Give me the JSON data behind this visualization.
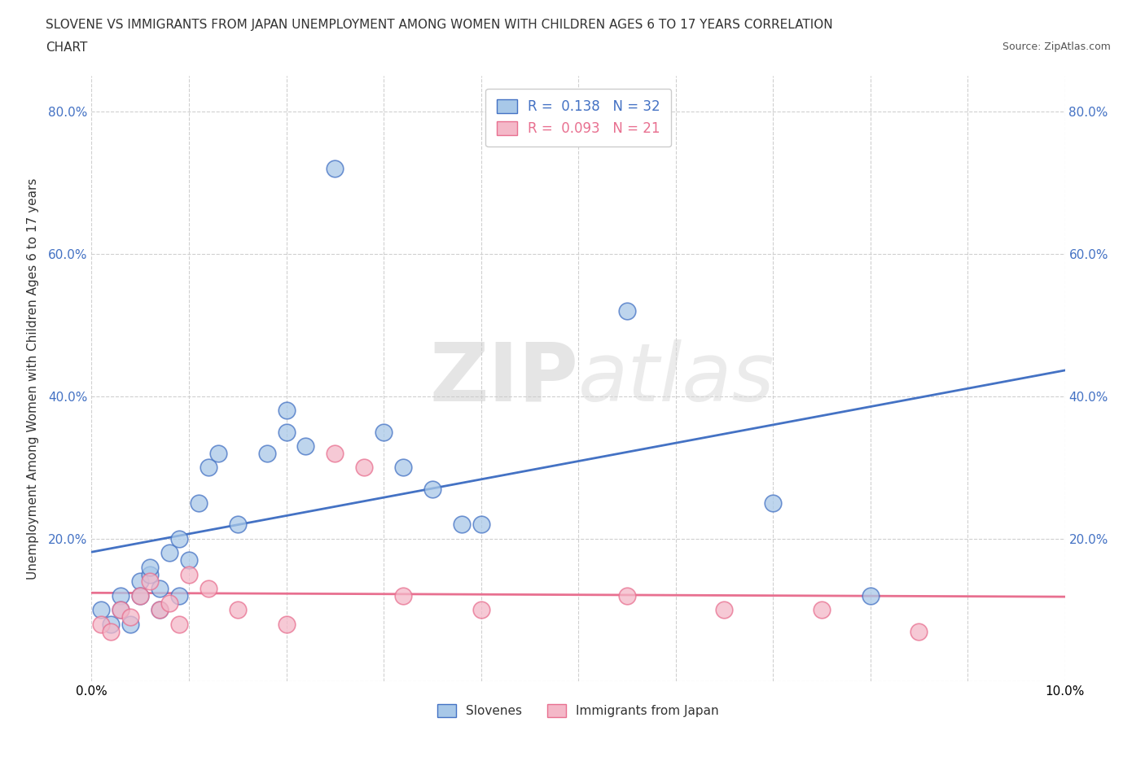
{
  "title_line1": "SLOVENE VS IMMIGRANTS FROM JAPAN UNEMPLOYMENT AMONG WOMEN WITH CHILDREN AGES 6 TO 17 YEARS CORRELATION",
  "title_line2": "CHART",
  "source": "Source: ZipAtlas.com",
  "ylabel": "Unemployment Among Women with Children Ages 6 to 17 years",
  "xlim": [
    0.0,
    0.1
  ],
  "ylim": [
    0.0,
    0.85
  ],
  "x_ticks": [
    0.0,
    0.01,
    0.02,
    0.03,
    0.04,
    0.05,
    0.06,
    0.07,
    0.08,
    0.09,
    0.1
  ],
  "x_tick_labels": [
    "0.0%",
    "",
    "",
    "",
    "",
    "",
    "",
    "",
    "",
    "",
    "10.0%"
  ],
  "y_ticks": [
    0.0,
    0.2,
    0.4,
    0.6,
    0.8
  ],
  "y_tick_labels": [
    "",
    "20.0%",
    "40.0%",
    "60.0%",
    "80.0%"
  ],
  "r_slovene": 0.138,
  "n_slovene": 32,
  "r_japan": 0.093,
  "n_japan": 21,
  "slovene_color": "#a8c8e8",
  "slovene_line_color": "#4472c4",
  "japan_color": "#f4b8c8",
  "japan_line_color": "#e87090",
  "background_color": "#ffffff",
  "grid_color": "#d0d0d0",
  "watermark_zip": "ZIP",
  "watermark_atlas": "atlas",
  "slovene_x": [
    0.001,
    0.002,
    0.003,
    0.003,
    0.004,
    0.005,
    0.005,
    0.006,
    0.006,
    0.007,
    0.007,
    0.008,
    0.009,
    0.009,
    0.01,
    0.011,
    0.012,
    0.013,
    0.015,
    0.018,
    0.02,
    0.02,
    0.022,
    0.025,
    0.03,
    0.032,
    0.035,
    0.038,
    0.04,
    0.055,
    0.07,
    0.08
  ],
  "slovene_y": [
    0.1,
    0.08,
    0.12,
    0.1,
    0.08,
    0.14,
    0.12,
    0.15,
    0.16,
    0.1,
    0.13,
    0.18,
    0.12,
    0.2,
    0.17,
    0.25,
    0.3,
    0.32,
    0.22,
    0.32,
    0.35,
    0.38,
    0.33,
    0.72,
    0.35,
    0.3,
    0.27,
    0.22,
    0.22,
    0.52,
    0.25,
    0.12
  ],
  "japan_x": [
    0.001,
    0.002,
    0.003,
    0.004,
    0.005,
    0.006,
    0.007,
    0.008,
    0.009,
    0.01,
    0.012,
    0.015,
    0.02,
    0.025,
    0.028,
    0.032,
    0.04,
    0.055,
    0.065,
    0.075,
    0.085
  ],
  "japan_y": [
    0.08,
    0.07,
    0.1,
    0.09,
    0.12,
    0.14,
    0.1,
    0.11,
    0.08,
    0.15,
    0.13,
    0.1,
    0.08,
    0.32,
    0.3,
    0.12,
    0.1,
    0.12,
    0.1,
    0.1,
    0.07
  ],
  "legend_label_slovene": "Slovenes",
  "legend_label_japan": "Immigrants from Japan"
}
